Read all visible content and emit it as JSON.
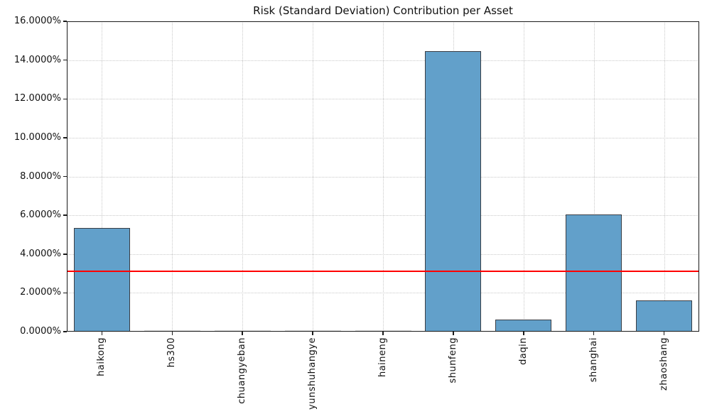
{
  "chart_data": {
    "type": "bar",
    "title": "Risk (Standard Deviation) Contribution per Asset",
    "categories": [
      "haikong",
      "hs300",
      "chuangyeban",
      "yunshuhangye",
      "haineng",
      "shunfeng",
      "daqin",
      "shanghai",
      "zhaoshang"
    ],
    "values": [
      5.33,
      0.0,
      0.0,
      0.0,
      0.0,
      14.45,
      0.61,
      6.03,
      1.61
    ],
    "value_unit": "%",
    "xlabel": "",
    "ylabel": "",
    "ylim": [
      0,
      16
    ],
    "ytick_step": 2,
    "ytick_labels": [
      "0.0000%",
      "2.0000%",
      "4.0000%",
      "6.0000%",
      "8.0000%",
      "10.0000%",
      "12.0000%",
      "14.0000%",
      "16.0000%"
    ],
    "reference_line": {
      "value": 3.13,
      "color": "#ff0000",
      "style": "solid"
    },
    "grid": true,
    "grid_style": "dotted",
    "legend_position": "none",
    "colors": {
      "bar_fill": "#62a0ca",
      "bar_edge": "#3a3e45",
      "zero_bar": "#d9d9d9",
      "gridline": "#c9c9c9",
      "spine": "#1a1a1a",
      "text": "#111111",
      "background": "#ffffff"
    }
  }
}
